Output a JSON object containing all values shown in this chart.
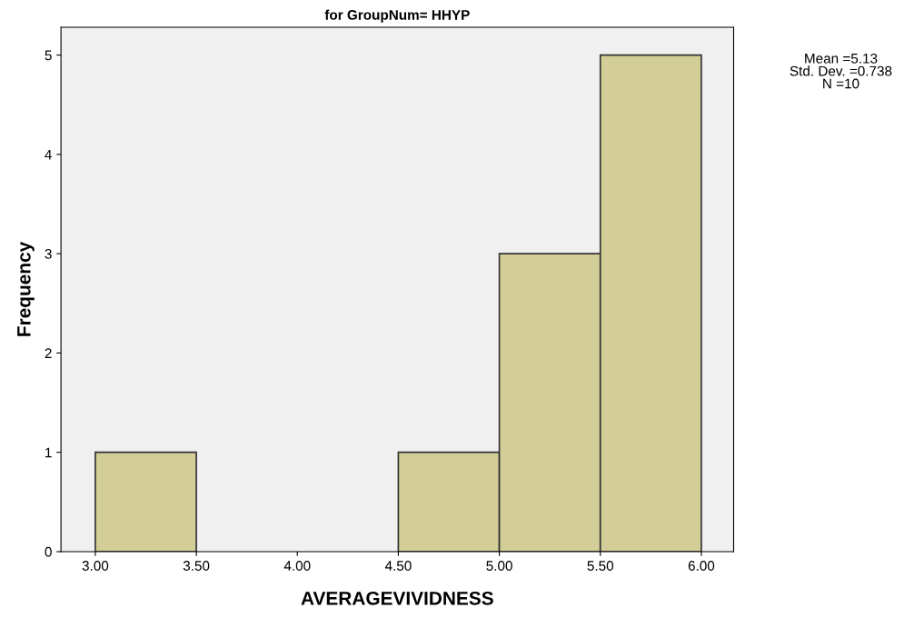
{
  "chart_data": {
    "type": "histogram",
    "title": "for GroupNum= HHYP",
    "xlabel": "AVERAGEVIVIDNESS",
    "ylabel": "Frequency",
    "bins": [
      3.0,
      3.5,
      4.0,
      4.5,
      5.0,
      5.5,
      6.0
    ],
    "values": [
      1,
      0,
      0,
      1,
      3,
      5
    ],
    "color": "#d3ce98",
    "xlim": [
      2.83,
      6.16
    ],
    "ylim": [
      0,
      5.28
    ],
    "xticks": [
      {
        "value": 3,
        "label": "3.00"
      },
      {
        "value": 3.5,
        "label": "3.50"
      },
      {
        "value": 4,
        "label": "4.00"
      },
      {
        "value": 4.5,
        "label": "4.50"
      },
      {
        "value": 5,
        "label": "5.00"
      },
      {
        "value": 5.5,
        "label": "5.50"
      },
      {
        "value": 6,
        "label": "6.00"
      }
    ],
    "yticks": [
      0,
      1,
      2,
      3,
      4,
      5
    ],
    "grid": false,
    "annotations": [
      "Mean =5.13",
      "Std. Dev. =0.738",
      "N =10"
    ]
  }
}
